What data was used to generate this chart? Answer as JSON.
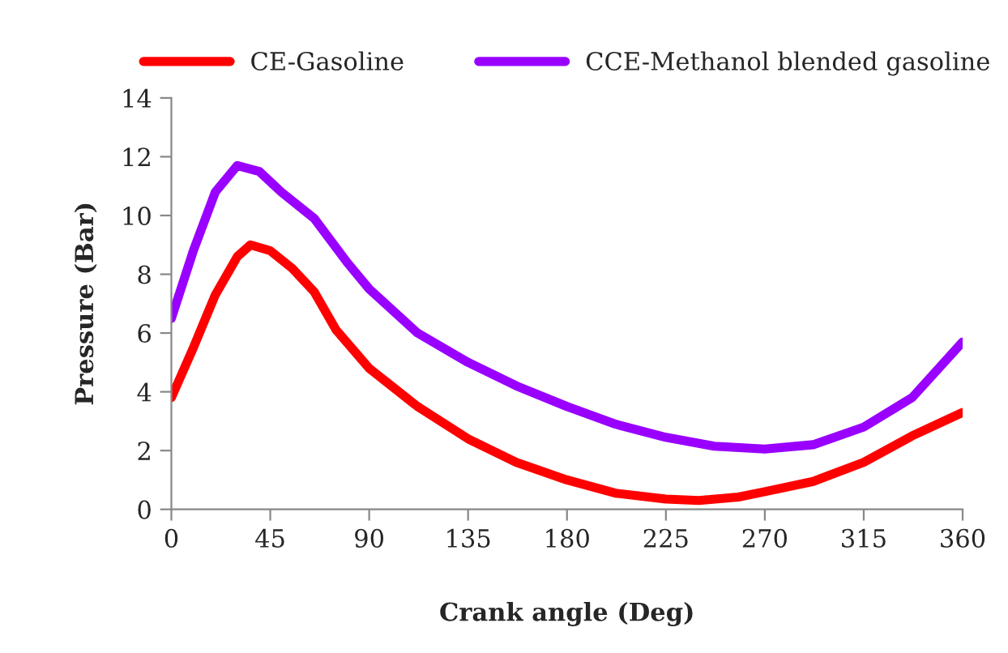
{
  "chart_data": {
    "type": "line",
    "xlabel": "Crank angle (Deg)",
    "ylabel": "Pressure (Bar)",
    "xlim": [
      0,
      360
    ],
    "xticks": [
      0,
      45,
      90,
      135,
      180,
      225,
      270,
      315,
      360
    ],
    "ylim": [
      0,
      14
    ],
    "yticks": [
      0,
      2,
      4,
      6,
      8,
      10,
      12,
      14
    ],
    "grid": false,
    "legend": "top",
    "marker": "none",
    "line_style": "solid",
    "series": [
      {
        "name": "CE-Gasoline",
        "color": "#ff0000",
        "x": [
          0,
          10,
          20,
          30,
          36,
          45,
          55,
          65,
          75,
          90,
          112,
          135,
          157,
          180,
          202,
          225,
          240,
          258,
          270,
          292,
          315,
          337,
          360
        ],
        "values": [
          3.8,
          5.5,
          7.3,
          8.6,
          9.0,
          8.8,
          8.2,
          7.4,
          6.1,
          4.8,
          3.5,
          2.4,
          1.6,
          1.0,
          0.55,
          0.35,
          0.3,
          0.42,
          0.6,
          0.95,
          1.6,
          2.5,
          3.3
        ]
      },
      {
        "name": "CCE-Methanol blended gasoline",
        "color": "#9900ff",
        "x": [
          0,
          10,
          20,
          30,
          40,
          50,
          65,
          80,
          90,
          112,
          135,
          157,
          180,
          202,
          225,
          247,
          270,
          292,
          315,
          337,
          360
        ],
        "values": [
          6.5,
          8.8,
          10.8,
          11.7,
          11.5,
          10.8,
          9.9,
          8.4,
          7.5,
          6.0,
          5.0,
          4.2,
          3.5,
          2.9,
          2.45,
          2.15,
          2.05,
          2.2,
          2.8,
          3.8,
          5.7
        ]
      }
    ]
  }
}
